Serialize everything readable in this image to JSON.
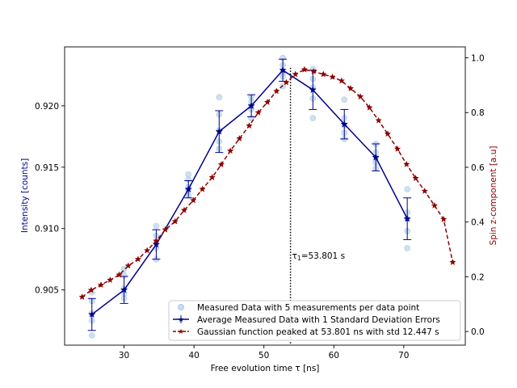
{
  "chart_data": {
    "type": "scatter",
    "title": "",
    "xlabel": "Free evolution time τ [ns]",
    "ylabel_left": "Intensity [counts]",
    "ylabel_right": "Spin z-component [a.u]",
    "xlim": [
      21.5,
      78.8
    ],
    "ylim_left": [
      0.9005,
      0.9248
    ],
    "ylim_right": [
      -0.05,
      1.04
    ],
    "x_ticks": [
      30,
      40,
      50,
      60,
      70
    ],
    "x_tick_labels": [
      "30",
      "40",
      "50",
      "60",
      "70"
    ],
    "y_left_ticks": [
      0.905,
      0.91,
      0.915,
      0.92
    ],
    "y_left_tick_labels": [
      "0.905",
      "0.910",
      "0.915",
      "0.920"
    ],
    "y_right_ticks": [
      0.0,
      0.2,
      0.4,
      0.6,
      0.8,
      1.0
    ],
    "y_right_tick_labels": [
      "0.0",
      "0.2",
      "0.4",
      "0.6",
      "0.8",
      "1.0"
    ],
    "colors": {
      "left_axis_label": "#00008b",
      "right_axis_label": "#8b0000",
      "measured": "#a6c8e6",
      "average": "#00008b",
      "gaussian": "#8b0000",
      "peak_line": "#000000"
    },
    "legend": {
      "placement": "lower-right",
      "entries": [
        "Measured Data with 5 measurements per data point",
        "Average Measured Data with 1 Standard Deviation Errors",
        "Gaussian function  peaked at 53.801 ns with std 12.447 s"
      ]
    },
    "annotation": {
      "text_prefix": "τ",
      "text_subscript": "1",
      "text_suffix": "=53.801 s",
      "x": 53.801
    },
    "measured_points": [
      {
        "x": 25.4,
        "y": [
          0.9013,
          0.9025,
          0.9031,
          0.9041,
          0.9048
        ]
      },
      {
        "x": 30.0,
        "y": [
          0.9043,
          0.9047,
          0.9051,
          0.9062,
          0.9067
        ]
      },
      {
        "x": 34.6,
        "y": [
          0.9075,
          0.9084,
          0.9089,
          0.9094,
          0.9102
        ]
      },
      {
        "x": 39.2,
        "y": [
          0.9127,
          0.9131,
          0.9134,
          0.914,
          0.9144
        ]
      },
      {
        "x": 43.6,
        "y": [
          0.9165,
          0.9171,
          0.918,
          0.9193,
          0.9207
        ]
      },
      {
        "x": 48.2,
        "y": [
          0.919,
          0.9197,
          0.92,
          0.9203,
          0.9207
        ]
      },
      {
        "x": 52.7,
        "y": [
          0.9216,
          0.9224,
          0.9227,
          0.9233,
          0.9239
        ]
      },
      {
        "x": 57.0,
        "y": [
          0.919,
          0.9206,
          0.9215,
          0.9222,
          0.923
        ]
      },
      {
        "x": 61.5,
        "y": [
          0.9173,
          0.9178,
          0.9184,
          0.919,
          0.9205
        ]
      },
      {
        "x": 66.0,
        "y": [
          0.9149,
          0.9154,
          0.9158,
          0.9162,
          0.9169
        ]
      },
      {
        "x": 70.5,
        "y": [
          0.9084,
          0.9098,
          0.9108,
          0.9113,
          0.9132
        ]
      }
    ],
    "average": {
      "x": [
        25.4,
        30.0,
        34.6,
        39.2,
        43.6,
        48.2,
        52.7,
        57.0,
        61.5,
        66.0,
        70.5
      ],
      "y": [
        0.903,
        0.905,
        0.9087,
        0.9132,
        0.9179,
        0.92,
        0.9229,
        0.9213,
        0.9185,
        0.9158,
        0.9108
      ],
      "err": [
        0.0013,
        0.0011,
        0.0012,
        0.0007,
        0.0017,
        0.0009,
        0.0009,
        0.0016,
        0.0012,
        0.0011,
        0.0017
      ]
    },
    "gaussian": {
      "mu": 53.801,
      "sigma": 12.447,
      "x": [
        24.0,
        25.3,
        26.7,
        28.0,
        29.3,
        30.6,
        32.0,
        33.3,
        34.6,
        35.9,
        37.3,
        38.6,
        39.9,
        41.2,
        42.6,
        43.9,
        45.2,
        46.5,
        47.9,
        49.2,
        50.5,
        51.8,
        53.2,
        54.5,
        55.8,
        57.1,
        58.5,
        59.8,
        61.1,
        62.4,
        63.8,
        65.1,
        66.4,
        67.7,
        69.1,
        70.4,
        71.7,
        73.0,
        74.4,
        75.7,
        77.0
      ],
      "y": [
        0.126,
        0.151,
        0.17,
        0.188,
        0.207,
        0.24,
        0.264,
        0.296,
        0.331,
        0.372,
        0.402,
        0.443,
        0.479,
        0.52,
        0.563,
        0.61,
        0.66,
        0.705,
        0.752,
        0.8,
        0.838,
        0.878,
        0.91,
        0.94,
        0.957,
        0.95,
        0.94,
        0.93,
        0.916,
        0.888,
        0.858,
        0.818,
        0.771,
        0.722,
        0.667,
        0.611,
        0.56,
        0.513,
        0.46,
        0.41,
        0.253
      ]
    }
  }
}
